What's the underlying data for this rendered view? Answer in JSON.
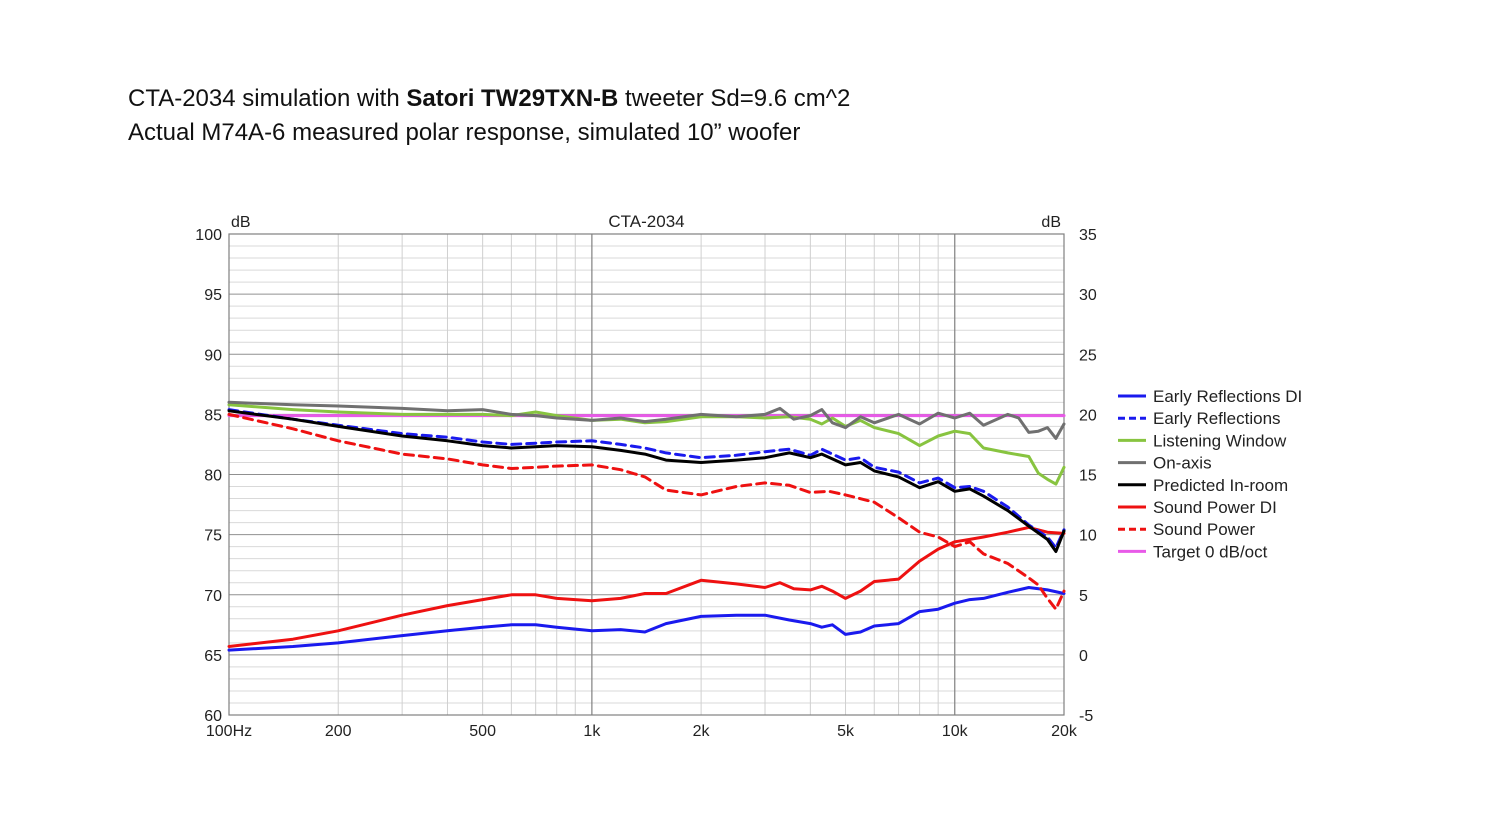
{
  "caption": {
    "line1_prefix": "CTA-2034 simulation with ",
    "line1_bold": "Satori TW29TXN-B",
    "line1_suffix": " tweeter Sd=9.6 cm^2",
    "line2": "Actual M74A-6 measured polar response, simulated 10” woofer"
  },
  "chart_data": {
    "type": "line",
    "title": "CTA-2034",
    "ylabel_left": "dB",
    "ylabel_right": "dB",
    "x_scale": "log",
    "xlim": [
      100,
      20000
    ],
    "ylim_left": [
      60,
      100
    ],
    "ylim_right": [
      -5,
      35
    ],
    "x_ticks": [
      {
        "v": 100,
        "label": "100Hz"
      },
      {
        "v": 200,
        "label": "200"
      },
      {
        "v": 500,
        "label": "500"
      },
      {
        "v": 1000,
        "label": "1k"
      },
      {
        "v": 2000,
        "label": "2k"
      },
      {
        "v": 5000,
        "label": "5k"
      },
      {
        "v": 10000,
        "label": "10k"
      },
      {
        "v": 20000,
        "label": "20k"
      }
    ],
    "y_ticks_left": [
      "60",
      "65",
      "70",
      "75",
      "80",
      "85",
      "90",
      "95",
      "100"
    ],
    "y_ticks_right": [
      "-5",
      "0",
      "5",
      "10",
      "15",
      "20",
      "25",
      "30",
      "35"
    ],
    "grid": true,
    "legend_position": "right",
    "series": [
      {
        "name": "Early Reflections DI",
        "axis": "right",
        "color": "#1a1aee",
        "dash": false,
        "points": [
          [
            100,
            0.4
          ],
          [
            150,
            0.7
          ],
          [
            200,
            1.0
          ],
          [
            300,
            1.6
          ],
          [
            400,
            2.0
          ],
          [
            500,
            2.3
          ],
          [
            600,
            2.5
          ],
          [
            700,
            2.5
          ],
          [
            800,
            2.3
          ],
          [
            1000,
            2.0
          ],
          [
            1200,
            2.1
          ],
          [
            1400,
            1.9
          ],
          [
            1600,
            2.6
          ],
          [
            2000,
            3.2
          ],
          [
            2500,
            3.3
          ],
          [
            3000,
            3.3
          ],
          [
            3500,
            2.9
          ],
          [
            4000,
            2.6
          ],
          [
            4300,
            2.3
          ],
          [
            4600,
            2.5
          ],
          [
            5000,
            1.7
          ],
          [
            5500,
            1.9
          ],
          [
            6000,
            2.4
          ],
          [
            7000,
            2.6
          ],
          [
            8000,
            3.6
          ],
          [
            9000,
            3.8
          ],
          [
            10000,
            4.3
          ],
          [
            11000,
            4.6
          ],
          [
            12000,
            4.7
          ],
          [
            14000,
            5.2
          ],
          [
            16000,
            5.6
          ],
          [
            18000,
            5.4
          ],
          [
            20000,
            5.1
          ]
        ]
      },
      {
        "name": "Early Reflections",
        "axis": "left",
        "color": "#1a1aee",
        "dash": true,
        "points": [
          [
            100,
            85.4
          ],
          [
            150,
            84.6
          ],
          [
            200,
            84.1
          ],
          [
            300,
            83.4
          ],
          [
            400,
            83.1
          ],
          [
            500,
            82.7
          ],
          [
            600,
            82.5
          ],
          [
            700,
            82.6
          ],
          [
            800,
            82.7
          ],
          [
            1000,
            82.8
          ],
          [
            1200,
            82.5
          ],
          [
            1400,
            82.2
          ],
          [
            1600,
            81.8
          ],
          [
            2000,
            81.4
          ],
          [
            2500,
            81.6
          ],
          [
            3000,
            81.9
          ],
          [
            3500,
            82.1
          ],
          [
            4000,
            81.6
          ],
          [
            4300,
            82.1
          ],
          [
            4600,
            81.7
          ],
          [
            5000,
            81.2
          ],
          [
            5500,
            81.4
          ],
          [
            6000,
            80.6
          ],
          [
            7000,
            80.2
          ],
          [
            8000,
            79.3
          ],
          [
            9000,
            79.7
          ],
          [
            10000,
            78.9
          ],
          [
            11000,
            79.0
          ],
          [
            12000,
            78.6
          ],
          [
            14000,
            77.3
          ],
          [
            16000,
            75.8
          ],
          [
            18000,
            74.8
          ],
          [
            19000,
            73.9
          ],
          [
            20000,
            75.4
          ]
        ]
      },
      {
        "name": "Listening Window",
        "axis": "left",
        "color": "#88c440",
        "dash": false,
        "points": [
          [
            100,
            85.8
          ],
          [
            150,
            85.4
          ],
          [
            200,
            85.2
          ],
          [
            300,
            85.0
          ],
          [
            400,
            85.0
          ],
          [
            500,
            85.0
          ],
          [
            600,
            84.9
          ],
          [
            700,
            85.2
          ],
          [
            800,
            84.9
          ],
          [
            1000,
            84.5
          ],
          [
            1200,
            84.6
          ],
          [
            1400,
            84.3
          ],
          [
            1600,
            84.4
          ],
          [
            2000,
            84.8
          ],
          [
            2500,
            84.8
          ],
          [
            3000,
            84.7
          ],
          [
            3500,
            84.8
          ],
          [
            4000,
            84.6
          ],
          [
            4300,
            84.2
          ],
          [
            4600,
            84.7
          ],
          [
            5000,
            84.0
          ],
          [
            5500,
            84.5
          ],
          [
            6000,
            83.9
          ],
          [
            7000,
            83.4
          ],
          [
            8000,
            82.4
          ],
          [
            9000,
            83.2
          ],
          [
            10000,
            83.6
          ],
          [
            11000,
            83.4
          ],
          [
            12000,
            82.2
          ],
          [
            14000,
            81.8
          ],
          [
            16000,
            81.5
          ],
          [
            17000,
            80.1
          ],
          [
            18000,
            79.6
          ],
          [
            19000,
            79.2
          ],
          [
            20000,
            80.6
          ]
        ]
      },
      {
        "name": "On-axis",
        "axis": "left",
        "color": "#707070",
        "dash": false,
        "points": [
          [
            100,
            86.0
          ],
          [
            150,
            85.8
          ],
          [
            200,
            85.7
          ],
          [
            300,
            85.5
          ],
          [
            400,
            85.3
          ],
          [
            500,
            85.4
          ],
          [
            600,
            85.0
          ],
          [
            700,
            84.9
          ],
          [
            800,
            84.7
          ],
          [
            1000,
            84.5
          ],
          [
            1200,
            84.7
          ],
          [
            1400,
            84.4
          ],
          [
            1600,
            84.6
          ],
          [
            2000,
            85.0
          ],
          [
            2500,
            84.8
          ],
          [
            3000,
            85.0
          ],
          [
            3300,
            85.5
          ],
          [
            3600,
            84.6
          ],
          [
            4000,
            84.9
          ],
          [
            4300,
            85.4
          ],
          [
            4600,
            84.3
          ],
          [
            5000,
            83.9
          ],
          [
            5500,
            84.8
          ],
          [
            6000,
            84.3
          ],
          [
            7000,
            85.0
          ],
          [
            8000,
            84.2
          ],
          [
            9000,
            85.1
          ],
          [
            10000,
            84.7
          ],
          [
            11000,
            85.1
          ],
          [
            12000,
            84.1
          ],
          [
            14000,
            85.0
          ],
          [
            15000,
            84.7
          ],
          [
            16000,
            83.5
          ],
          [
            17000,
            83.6
          ],
          [
            18000,
            83.9
          ],
          [
            19000,
            83.0
          ],
          [
            20000,
            84.2
          ]
        ]
      },
      {
        "name": "Predicted In-room",
        "axis": "left",
        "color": "#000000",
        "dash": false,
        "points": [
          [
            100,
            85.3
          ],
          [
            150,
            84.6
          ],
          [
            200,
            84.0
          ],
          [
            300,
            83.2
          ],
          [
            400,
            82.8
          ],
          [
            500,
            82.4
          ],
          [
            600,
            82.2
          ],
          [
            700,
            82.3
          ],
          [
            800,
            82.4
          ],
          [
            1000,
            82.3
          ],
          [
            1200,
            82.0
          ],
          [
            1400,
            81.7
          ],
          [
            1600,
            81.2
          ],
          [
            2000,
            81.0
          ],
          [
            2500,
            81.2
          ],
          [
            3000,
            81.4
          ],
          [
            3500,
            81.8
          ],
          [
            4000,
            81.4
          ],
          [
            4300,
            81.7
          ],
          [
            4600,
            81.3
          ],
          [
            5000,
            80.8
          ],
          [
            5500,
            81.0
          ],
          [
            6000,
            80.3
          ],
          [
            7000,
            79.8
          ],
          [
            8000,
            78.9
          ],
          [
            9000,
            79.4
          ],
          [
            10000,
            78.6
          ],
          [
            11000,
            78.8
          ],
          [
            12000,
            78.2
          ],
          [
            14000,
            77.0
          ],
          [
            16000,
            75.7
          ],
          [
            18000,
            74.6
          ],
          [
            19000,
            73.6
          ],
          [
            20000,
            75.3
          ]
        ]
      },
      {
        "name": "Sound Power DI",
        "axis": "right",
        "color": "#ee1111",
        "dash": false,
        "points": [
          [
            100,
            0.7
          ],
          [
            150,
            1.3
          ],
          [
            200,
            2.0
          ],
          [
            300,
            3.3
          ],
          [
            400,
            4.1
          ],
          [
            500,
            4.6
          ],
          [
            600,
            5.0
          ],
          [
            700,
            5.0
          ],
          [
            800,
            4.7
          ],
          [
            1000,
            4.5
          ],
          [
            1200,
            4.7
          ],
          [
            1400,
            5.1
          ],
          [
            1600,
            5.1
          ],
          [
            2000,
            6.2
          ],
          [
            2500,
            5.9
          ],
          [
            3000,
            5.6
          ],
          [
            3300,
            6.0
          ],
          [
            3600,
            5.5
          ],
          [
            4000,
            5.4
          ],
          [
            4300,
            5.7
          ],
          [
            4600,
            5.3
          ],
          [
            5000,
            4.7
          ],
          [
            5500,
            5.3
          ],
          [
            6000,
            6.1
          ],
          [
            7000,
            6.3
          ],
          [
            8000,
            7.8
          ],
          [
            9000,
            8.8
          ],
          [
            10000,
            9.4
          ],
          [
            11000,
            9.6
          ],
          [
            12000,
            9.8
          ],
          [
            14000,
            10.2
          ],
          [
            16000,
            10.6
          ],
          [
            18000,
            10.2
          ],
          [
            20000,
            10.1
          ]
        ]
      },
      {
        "name": "Sound Power",
        "axis": "left",
        "color": "#ee1111",
        "dash": true,
        "points": [
          [
            100,
            85.0
          ],
          [
            150,
            83.8
          ],
          [
            200,
            82.8
          ],
          [
            300,
            81.7
          ],
          [
            400,
            81.3
          ],
          [
            500,
            80.8
          ],
          [
            600,
            80.5
          ],
          [
            700,
            80.6
          ],
          [
            800,
            80.7
          ],
          [
            1000,
            80.8
          ],
          [
            1200,
            80.4
          ],
          [
            1400,
            79.8
          ],
          [
            1600,
            78.7
          ],
          [
            2000,
            78.3
          ],
          [
            2500,
            79.0
          ],
          [
            3000,
            79.3
          ],
          [
            3500,
            79.1
          ],
          [
            4000,
            78.5
          ],
          [
            4500,
            78.6
          ],
          [
            5000,
            78.3
          ],
          [
            6000,
            77.7
          ],
          [
            7000,
            76.4
          ],
          [
            8000,
            75.2
          ],
          [
            9000,
            74.8
          ],
          [
            10000,
            74.0
          ],
          [
            11000,
            74.4
          ],
          [
            12000,
            73.4
          ],
          [
            14000,
            72.6
          ],
          [
            16000,
            71.4
          ],
          [
            17000,
            70.8
          ],
          [
            18000,
            69.7
          ],
          [
            19000,
            68.8
          ],
          [
            20000,
            70.3
          ]
        ]
      },
      {
        "name": "Target 0 dB/oct",
        "axis": "left",
        "color": "#e85ae8",
        "dash": false,
        "points": [
          [
            100,
            84.9
          ],
          [
            20000,
            84.9
          ]
        ]
      }
    ]
  }
}
